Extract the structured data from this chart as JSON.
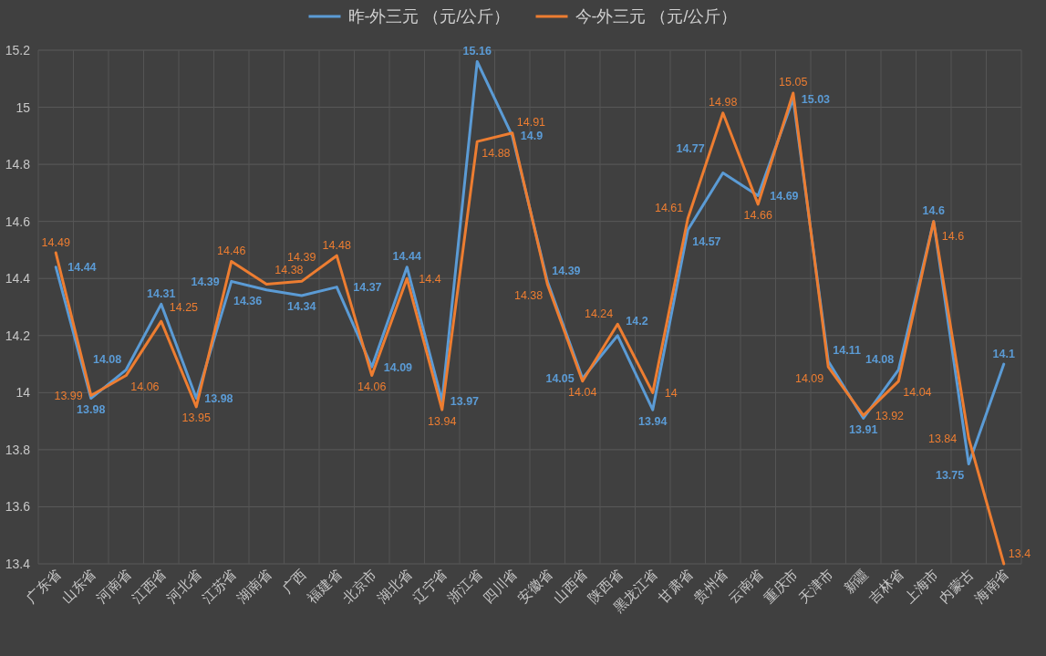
{
  "chart_data": {
    "type": "line",
    "categories": [
      "广东省",
      "山东省",
      "河南省",
      "江西省",
      "河北省",
      "江苏省",
      "湖南省",
      "广西",
      "福建省",
      "北京市",
      "湖北省",
      "辽宁省",
      "浙江省",
      "四川省",
      "安徽省",
      "山西省",
      "陕西省",
      "黑龙江省",
      "甘肃省",
      "贵州省",
      "云南省",
      "重庆市",
      "天津市",
      "新疆",
      "吉林省",
      "上海市",
      "内蒙古",
      "海南省"
    ],
    "series": [
      {
        "name": "昨-外三元 （元/公斤）",
        "color": "#5b9bd5",
        "values": [
          14.44,
          13.98,
          14.08,
          14.31,
          13.98,
          14.39,
          14.36,
          14.34,
          14.37,
          14.09,
          14.44,
          13.97,
          15.16,
          14.9,
          14.39,
          14.05,
          14.2,
          13.94,
          14.57,
          14.77,
          14.69,
          15.03,
          14.11,
          13.91,
          14.08,
          14.6,
          13.75,
          14.1
        ]
      },
      {
        "name": "今-外三元 （元/公斤）",
        "color": "#ed7d31",
        "values": [
          14.49,
          13.99,
          14.06,
          14.25,
          13.95,
          14.46,
          14.38,
          14.39,
          14.48,
          14.06,
          14.4,
          13.94,
          14.88,
          14.91,
          14.38,
          14.04,
          14.24,
          14,
          14.61,
          14.98,
          14.66,
          15.05,
          14.09,
          13.92,
          14.04,
          14.6,
          13.84,
          13.4
        ]
      }
    ],
    "ylim": [
      13.4,
      15.2
    ],
    "yticks": [
      13.4,
      13.6,
      13.8,
      14,
      14.2,
      14.4,
      14.6,
      14.8,
      15,
      15.2
    ],
    "grid": true,
    "legend": "top",
    "data_labels": true,
    "line_style": "solid"
  }
}
